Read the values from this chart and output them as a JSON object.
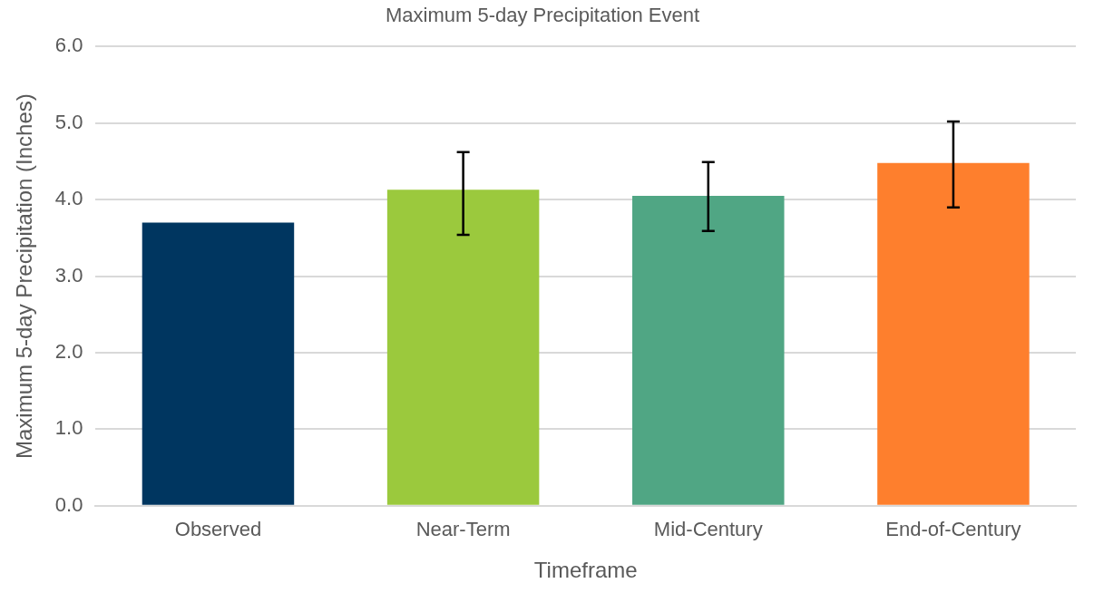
{
  "chart_data": {
    "type": "bar",
    "title": "Maximum 5-day Precipitation Event",
    "xlabel": "Timeframe",
    "ylabel": "Maximum 5-day Precipitation (Inches)",
    "categories": [
      "Observed",
      "Near-Term",
      "Mid-Century",
      "End-of-Century"
    ],
    "values": [
      3.7,
      4.13,
      4.05,
      4.48
    ],
    "colors": [
      "#003660",
      "#9bc93d",
      "#50a684",
      "#fe7f2d"
    ],
    "errors": [
      null,
      [
        3.54,
        4.62
      ],
      [
        3.59,
        4.49
      ],
      [
        3.9,
        5.02
      ]
    ],
    "ylim": [
      0,
      6
    ],
    "yticks": [
      {
        "value": 0,
        "label": "0.0"
      },
      {
        "value": 1,
        "label": "1.0"
      },
      {
        "value": 2,
        "label": "2.0"
      },
      {
        "value": 3,
        "label": "3.0"
      },
      {
        "value": 4,
        "label": "4.0"
      },
      {
        "value": 5,
        "label": "5.0"
      },
      {
        "value": 6,
        "label": "6.0"
      }
    ],
    "grid": "y",
    "legend": false
  }
}
